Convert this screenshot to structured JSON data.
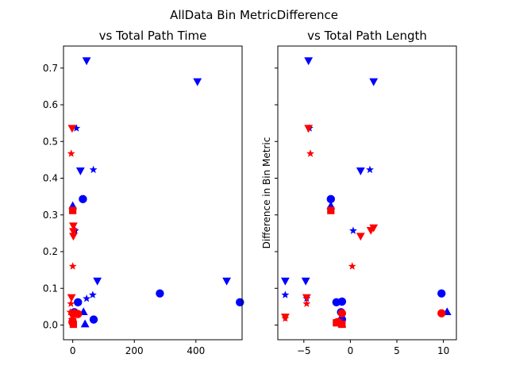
{
  "figure": {
    "suptitle": "AllData Bin MetricDifference"
  },
  "colors": {
    "series_a": "#0000ff",
    "series_b": "#ff0000",
    "axes": "#000000"
  },
  "chart_data": [
    {
      "type": "scatter",
      "title": "vs Total Path Time",
      "xlabel": "",
      "ylabel": "",
      "xlim": [
        -30,
        550
      ],
      "ylim": [
        -0.04,
        0.76
      ],
      "xticks": [
        0,
        200,
        400
      ],
      "yticks": [
        0.0,
        0.1,
        0.2,
        0.3,
        0.4,
        0.5,
        0.6,
        0.7
      ],
      "ytick_labels": [
        "0.0",
        "0.1",
        "0.2",
        "0.3",
        "0.4",
        "0.5",
        "0.6",
        "0.7"
      ],
      "grid": false,
      "series": [
        {
          "marker": "triangle-down",
          "color": "#0000ff",
          "points": [
            [
              45,
              0.72
            ],
            [
              405,
              0.663
            ],
            [
              25,
              0.42
            ],
            [
              80,
              0.12
            ],
            [
              500,
              0.12
            ]
          ]
        },
        {
          "marker": "star",
          "color": "#0000ff",
          "points": [
            [
              12,
              0.536
            ],
            [
              67,
              0.423
            ],
            [
              8,
              0.257
            ],
            [
              65,
              0.082
            ],
            [
              45,
              0.072
            ]
          ]
        },
        {
          "marker": "circle",
          "color": "#0000ff",
          "points": [
            [
              33,
              0.343
            ],
            [
              283,
              0.086
            ],
            [
              543,
              0.062
            ],
            [
              17,
              0.062
            ],
            [
              68,
              0.015
            ],
            [
              5,
              0.035
            ]
          ]
        },
        {
          "marker": "triangle-up",
          "color": "#0000ff",
          "points": [
            [
              0,
              0.325
            ],
            [
              35,
              0.036
            ],
            [
              40,
              0.003
            ]
          ]
        },
        {
          "marker": "triangle-down",
          "color": "#ff0000",
          "points": [
            [
              -2,
              0.536
            ],
            [
              2,
              0.27
            ],
            [
              2,
              0.255
            ],
            [
              2,
              0.242
            ],
            [
              -4,
              0.075
            ],
            [
              0,
              0.022
            ]
          ]
        },
        {
          "marker": "star",
          "color": "#ff0000",
          "points": [
            [
              -5,
              0.467
            ],
            [
              0,
              0.16
            ],
            [
              -6,
              0.058
            ],
            [
              -8,
              0.035
            ],
            [
              -3,
              0.015
            ]
          ]
        },
        {
          "marker": "square",
          "color": "#ff0000",
          "points": [
            [
              0,
              0.312
            ],
            [
              0,
              0.01
            ],
            [
              2,
              0.002
            ]
          ]
        },
        {
          "marker": "circle",
          "color": "#ff0000",
          "points": [
            [
              5,
              0.032
            ],
            [
              17,
              0.03
            ],
            [
              -1,
              0.008
            ]
          ]
        }
      ]
    },
    {
      "type": "scatter",
      "title": "vs Total Path Length",
      "xlabel": "",
      "ylabel": "Difference in Bin Metric",
      "xlim": [
        -7.8,
        11.4
      ],
      "ylim": [
        -0.04,
        0.76
      ],
      "xticks": [
        -5,
        0,
        5,
        10
      ],
      "xtick_labels": [
        "−5",
        "0",
        "5",
        "10"
      ],
      "yticks": [
        0.0,
        0.1,
        0.2,
        0.3,
        0.4,
        0.5,
        0.6,
        0.7
      ],
      "ytick_labels": [
        "",
        "",
        "",
        "",
        "",
        "",
        "",
        ""
      ],
      "grid": false,
      "series": [
        {
          "marker": "triangle-down",
          "color": "#0000ff",
          "points": [
            [
              -4.5,
              0.72
            ],
            [
              2.5,
              0.663
            ],
            [
              1.1,
              0.42
            ],
            [
              -7,
              0.12
            ],
            [
              -4.8,
              0.12
            ]
          ]
        },
        {
          "marker": "star",
          "color": "#0000ff",
          "points": [
            [
              -4.4,
              0.536
            ],
            [
              2.1,
              0.423
            ],
            [
              0.3,
              0.257
            ],
            [
              -7,
              0.082
            ],
            [
              -4.7,
              0.072
            ]
          ]
        },
        {
          "marker": "circle",
          "color": "#0000ff",
          "points": [
            [
              -2.1,
              0.343
            ],
            [
              9.8,
              0.086
            ],
            [
              -1.5,
              0.062
            ],
            [
              -0.9,
              0.064
            ],
            [
              -0.9,
              0.015
            ],
            [
              -1.0,
              0.035
            ]
          ]
        },
        {
          "marker": "triangle-up",
          "color": "#0000ff",
          "points": [
            [
              -2.1,
              0.325
            ],
            [
              10.4,
              0.036
            ],
            [
              -0.9,
              0.003
            ]
          ]
        },
        {
          "marker": "triangle-down",
          "color": "#ff0000",
          "points": [
            [
              -4.5,
              0.536
            ],
            [
              2.5,
              0.265
            ],
            [
              2.2,
              0.258
            ],
            [
              1.1,
              0.242
            ],
            [
              -4.7,
              0.075
            ],
            [
              -7,
              0.022
            ]
          ]
        },
        {
          "marker": "star",
          "color": "#ff0000",
          "points": [
            [
              -4.3,
              0.467
            ],
            [
              0.2,
              0.16
            ],
            [
              -4.7,
              0.058
            ],
            [
              -7,
              0.018
            ],
            [
              -1.2,
              0.012
            ]
          ]
        },
        {
          "marker": "square",
          "color": "#ff0000",
          "points": [
            [
              -2.1,
              0.312
            ],
            [
              -1.5,
              0.006
            ],
            [
              -0.9,
              0.002
            ]
          ]
        },
        {
          "marker": "circle",
          "color": "#ff0000",
          "points": [
            [
              9.8,
              0.032
            ],
            [
              -0.9,
              0.032
            ],
            [
              -1.4,
              0.008
            ]
          ]
        }
      ]
    }
  ]
}
